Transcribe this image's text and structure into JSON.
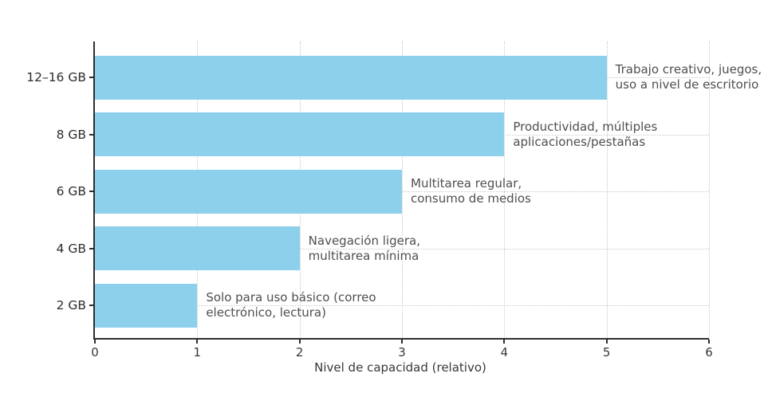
{
  "chart_data": {
    "type": "bar",
    "orientation": "horizontal",
    "title": "",
    "xlabel": "Nivel de capacidad (relativo)",
    "ylabel": "",
    "xlim": [
      0,
      6
    ],
    "xticks": [
      "0",
      "1",
      "2",
      "3",
      "4",
      "5",
      "6"
    ],
    "grid": true,
    "grid_style": "dotted",
    "legend": "none",
    "categories": [
      "12–16 GB",
      "8 GB",
      "6 GB",
      "4 GB",
      "2 GB"
    ],
    "values": [
      5,
      4,
      3,
      2,
      1
    ],
    "bar_color": "#87CEEB",
    "spine_color": "#2e2e2e",
    "gridline_color": "#c9c9c9",
    "annotation_color": "#4f4f4f",
    "annotations": [
      [
        "Trabajo creativo, juegos,",
        "uso a nivel de escritorio"
      ],
      [
        "Productividad, múltiples",
        "aplicaciones/pestañas"
      ],
      [
        "Multitarea regular,",
        "consumo de medios"
      ],
      [
        "Navegación ligera,",
        "multitarea mínima"
      ],
      [
        "Solo para uso básico (correo",
        "electrónico, lectura)"
      ]
    ]
  }
}
